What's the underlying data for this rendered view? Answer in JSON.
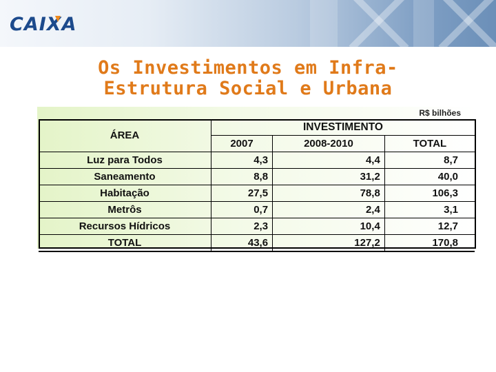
{
  "header": {
    "logo_text": "CAIXA",
    "brand_color": "#1c4a8c",
    "accent_color": "#f08a1c"
  },
  "title": {
    "line1": "Os Investimentos em Infra-",
    "line2": "Estrutura Social e Urbana",
    "color": "#e07a1a"
  },
  "table": {
    "unit": "R$ bilhões",
    "area_header": "ÁREA",
    "group_header": "INVESTIMENTO",
    "columns": [
      "2007",
      "2008-2010",
      "TOTAL"
    ],
    "rows": [
      {
        "area": "Luz para Todos",
        "v2007": "4,3",
        "v2008": "4,4",
        "total": "8,7"
      },
      {
        "area": "Saneamento",
        "v2007": "8,8",
        "v2008": "31,2",
        "total": "40,0"
      },
      {
        "area": "Habitação",
        "v2007": "27,5",
        "v2008": "78,8",
        "total": "106,3"
      },
      {
        "area": "Metrôs",
        "v2007": "0,7",
        "v2008": "2,4",
        "total": "3,1"
      },
      {
        "area": "Recursos Hídricos",
        "v2007": "2,3",
        "v2008": "10,4",
        "total": "12,7"
      }
    ],
    "total_row": {
      "area": "TOTAL",
      "v2007": "43,6",
      "v2008": "127,2",
      "total": "170,8"
    }
  }
}
